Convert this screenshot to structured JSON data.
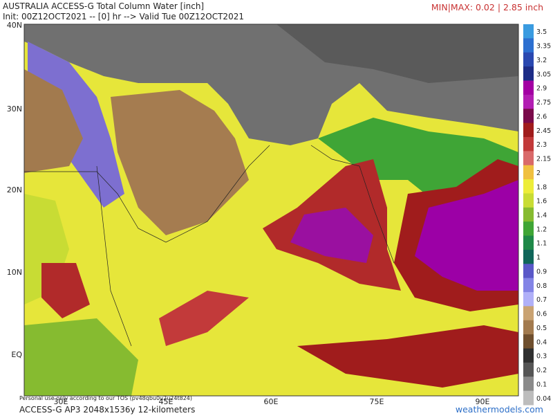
{
  "header": {
    "title": "AUSTRALIA ACCESS-G Total Column Water [inch]",
    "subtitle": "Init: 00Z12OCT2021 -- [0] hr --> Valid Tue 00Z12OCT2021",
    "minmax": "MIN|MAX: 0.02 | 2.85 inch"
  },
  "map": {
    "lat_labels": [
      "40N",
      "30N",
      "20N",
      "10N",
      "EQ"
    ],
    "lon_labels": [
      "30E",
      "45E",
      "60E",
      "75E",
      "90E"
    ],
    "disclaimer": "Personal use only according to our TOS (pv48qbu0u2u24t824)"
  },
  "colorbar": {
    "labels": [
      "3.5",
      "3.35",
      "3.2",
      "3.05",
      "2.9",
      "2.75",
      "2.6",
      "2.45",
      "2.3",
      "2.15",
      "2",
      "1.8",
      "1.6",
      "1.4",
      "1.2",
      "1.1",
      "1",
      "0.9",
      "0.8",
      "0.7",
      "0.6",
      "0.5",
      "0.4",
      "0.3",
      "0.2",
      "0.1",
      "0.04"
    ],
    "colors": [
      "#3a9be0",
      "#2c6fd0",
      "#2a48b0",
      "#1d2c86",
      "#a300a3",
      "#b21eb2",
      "#7a0a4a",
      "#a01c1c",
      "#c23a3a",
      "#d96a6a",
      "#f0c040",
      "#eded3a",
      "#c8dc34",
      "#86bb30",
      "#3fa536",
      "#1f8848",
      "#10665a",
      "#5a58c8",
      "#8384e6",
      "#b0b0f8",
      "#c9a272",
      "#a27a4e",
      "#6f4f2e",
      "#303030",
      "#555555",
      "#8a8a8a",
      "#bdbdbd"
    ]
  },
  "footer": {
    "model": "ACCESS-G AP3 2048x1536y 12-kilometers",
    "brand": "weathermodels.com"
  }
}
